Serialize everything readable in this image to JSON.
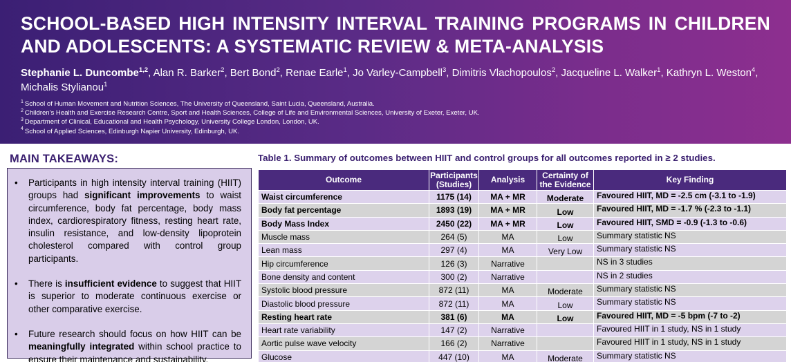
{
  "header": {
    "title": "SCHOOL-BASED HIGH INTENSITY INTERVAL TRAINING PROGRAMS IN CHILDREN AND ADOLESCENTS: A SYSTEMATIC REVIEW & META-ANALYSIS",
    "authors": [
      {
        "name": "Stephanie L. Duncombe",
        "sup": "1,2",
        "lead": true,
        "sep": ", "
      },
      {
        "name": "Alan R. Barker",
        "sup": "2",
        "sep": ", "
      },
      {
        "name": "Bert Bond",
        "sup": "2",
        "sep": ", "
      },
      {
        "name": "Renae Earle",
        "sup": "1",
        "sep": ", "
      },
      {
        "name": "Jo Varley-Campbell",
        "sup": "3",
        "sep": ", "
      },
      {
        "name": "Dimitris Vlachopoulos",
        "sup": "2",
        "sep": ", "
      },
      {
        "name": "Jacqueline L. Walker",
        "sup": "1",
        "sep": ", "
      },
      {
        "name": "Kathryn L. Weston",
        "sup": "4",
        "sep": ", "
      },
      {
        "name": "Michalis Stylianou",
        "sup": "1",
        "sep": ""
      }
    ],
    "affiliations": [
      {
        "num": "1",
        "text": "School of Human Movement and Nutrition Sciences, The University of Queensland, Saint Lucia, Queensland, Australia."
      },
      {
        "num": "2",
        "text": "Children's Health and Exercise Research Centre, Sport and Health Sciences, College of Life and Environmental Sciences, University of Exeter, Exeter, UK."
      },
      {
        "num": "3",
        "text": "Department of Clinical, Educational and Health Psychology, University College London, London, UK."
      },
      {
        "num": "4",
        "text": "School of Applied Sciences, Edinburgh Napier University, Edinburgh, UK."
      }
    ]
  },
  "takeaways": {
    "title": "MAIN TAKEAWAYS:",
    "bullet": "•",
    "items": [
      {
        "before": "Participants in high intensity interval training (HIIT) groups had ",
        "bold": "significant improvements",
        "after": " to waist circumference, body fat percentage, body mass index, cardiorespiratory fitness, resting heart rate, insulin resistance, and low-density lipoprotein cholesterol compared with control group participants."
      },
      {
        "before": "There is ",
        "bold": "insufficient evidence",
        "after": " to suggest that HIIT is superior to moderate continuous exercise or other comparative exercise."
      },
      {
        "before": "Future research should focus on how HIIT can be ",
        "bold": "meaningfully integrated",
        "after": " within school practice to ensure their maintenance and sustainability."
      }
    ]
  },
  "table": {
    "caption": "Table 1. Summary of outcomes between HIIT and control groups for all outcomes reported in ≥ 2 studies.",
    "headers": {
      "outcome": "Outcome",
      "participants_1": "Participants",
      "participants_2": "(Studies)",
      "analysis": "Analysis",
      "certainty_1": "Certainty of",
      "certainty_2": "the Evidence",
      "finding": "Key Finding"
    },
    "rows": [
      {
        "outcome": "Waist circumference",
        "participants": "1175 (14)",
        "analysis": "MA + MR",
        "certainty": "Moderate",
        "finding": "Favoured HIIT, MD = -2.5 cm (-3.1 to -1.9)",
        "bold": true
      },
      {
        "outcome": "Body fat percentage",
        "participants": "1893 (19)",
        "analysis": "MA + MR",
        "certainty": "Low",
        "finding": "Favoured HIIT, MD = -1.7 % (-2.3 to -1.1)",
        "bold": true
      },
      {
        "outcome": "Body Mass Index",
        "participants": "2450 (22)",
        "analysis": "MA + MR",
        "certainty": "Low",
        "finding": "Favoured HIIT, SMD = -0.9 (-1.3 to -0.6)",
        "bold": true
      },
      {
        "outcome": "Muscle mass",
        "participants": "264 (5)",
        "analysis": "MA",
        "certainty": "Low",
        "finding": "Summary statistic NS",
        "bold": false
      },
      {
        "outcome": "Lean mass",
        "participants": "297 (4)",
        "analysis": "MA",
        "certainty": "Very Low",
        "finding": "Summary statistic NS",
        "bold": false
      },
      {
        "outcome": "Hip circumference",
        "participants": "126 (3)",
        "analysis": "Narrative",
        "certainty": "",
        "finding": "NS in 3 studies",
        "bold": false
      },
      {
        "outcome": "Bone density and content",
        "participants": "300 (2)",
        "analysis": "Narrative",
        "certainty": "",
        "finding": "NS in 2 studies",
        "bold": false
      },
      {
        "outcome": "Systolic blood pressure",
        "participants": "872 (11)",
        "analysis": "MA",
        "certainty": "Moderate",
        "finding": "Summary statistic NS",
        "bold": false
      },
      {
        "outcome": "Diastolic blood pressure",
        "participants": "872 (11)",
        "analysis": "MA",
        "certainty": "Low",
        "finding": "Summary statistic NS",
        "bold": false
      },
      {
        "outcome": "Resting heart rate",
        "participants": "381 (6)",
        "analysis": "MA",
        "certainty": "Low",
        "finding": "Favoured HIIT, MD = -5 bpm (-7 to -2)",
        "bold": true
      },
      {
        "outcome": "Heart rate variability",
        "participants": "147 (2)",
        "analysis": "Narrative",
        "certainty": "",
        "finding": "Favoured HIIT in 1 study, NS in 1 study",
        "bold": false
      },
      {
        "outcome": "Aortic pulse wave velocity",
        "participants": "166 (2)",
        "analysis": "Narrative",
        "certainty": "",
        "finding": "Favoured HIIT in 1 study, NS in 1 study",
        "bold": false
      },
      {
        "outcome": "Glucose",
        "participants": "447 (10)",
        "analysis": "MA",
        "certainty": "Moderate",
        "finding": "Summary statistic NS",
        "bold": false
      }
    ]
  }
}
